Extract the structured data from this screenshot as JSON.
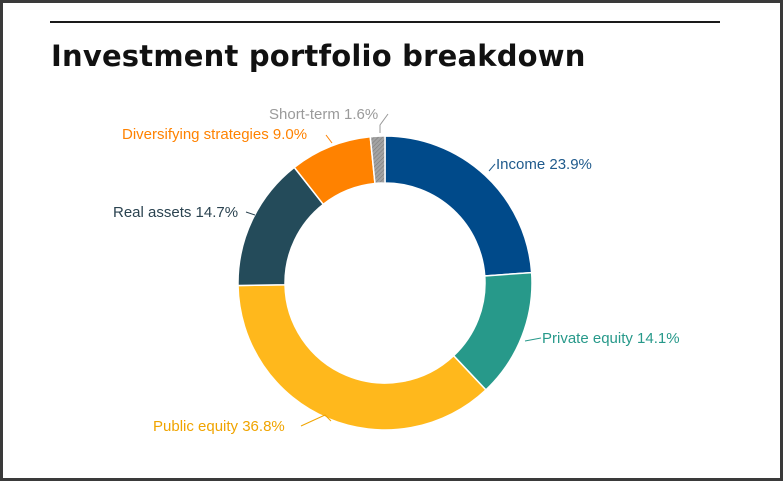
{
  "title": "Investment portfolio breakdown",
  "chart_data": {
    "type": "pie",
    "variant": "donut",
    "title": "Investment portfolio breakdown",
    "unit": "%",
    "slices": [
      {
        "label": "Income",
        "value": 23.9,
        "display": "Income 23.9%",
        "color": "#004a8a",
        "label_color": "#1f5a8c"
      },
      {
        "label": "Private equity",
        "value": 14.1,
        "display": "Private equity 14.1%",
        "color": "#27998a",
        "label_color": "#27998a"
      },
      {
        "label": "Public equity",
        "value": 36.8,
        "display": "Public equity 36.8%",
        "color": "#ffb81c",
        "label_color": "#f0a400"
      },
      {
        "label": "Real assets",
        "value": 14.7,
        "display": "Real assets 14.7%",
        "color": "#244b5a",
        "label_color": "#2b4350"
      },
      {
        "label": "Diversifying strategies",
        "value": 9.0,
        "display": "Diversifying strategies 9.0%",
        "color": "#ff8200",
        "label_color": "#ff8200"
      },
      {
        "label": "Short-term",
        "value": 1.6,
        "display": "Short-term 1.6%",
        "color": "#9a9a9a",
        "label_color": "#9a9a9a"
      }
    ]
  }
}
